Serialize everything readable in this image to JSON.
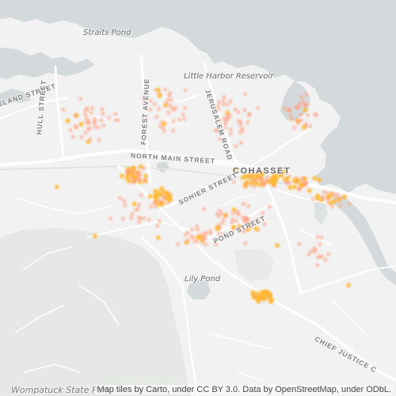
{
  "map": {
    "labels": {
      "straits_pond": "Straits Pond",
      "little_harbor_reservoir": "Little Harbor Reservoir",
      "island_street": "ISLAND STREET",
      "hull_street": "HULL STREET",
      "forest_avenue": "FOREST AVENUE",
      "jerusalem_road": "JERUSALEM ROAD",
      "north_main_street": "NORTH MAIN STREET",
      "cohasset": "COHASSET",
      "sohier_street": "SOHIER STREET",
      "pond_street": "POND STREET",
      "lily_pond": "Lily Pond",
      "chief_justice": "CHIEF JUSTICE C",
      "wompatuck_state_park": "Wompatuck State Park"
    },
    "attribution": "Map tiles by Carto, under CC BY 3.0. Data by OpenStreetMap, under ODbL.",
    "colors": {
      "water": "#d4dadc",
      "land": "#f2f2f2",
      "park": "#e6e8e6",
      "roads": "#ffffff",
      "point_faint": "#ff9e80",
      "point_strong": "#ffb830"
    }
  }
}
